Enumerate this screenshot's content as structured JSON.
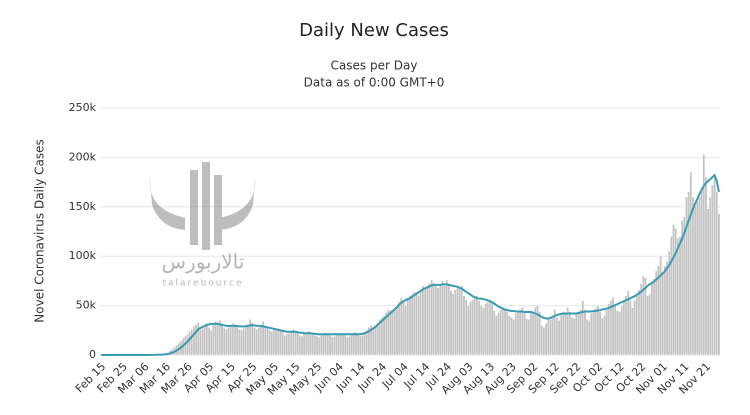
{
  "chart_data": {
    "type": "bar",
    "title": "Daily New Cases",
    "subtitle": [
      "Cases per Day",
      "Data as of 0:00 GMT+0"
    ],
    "y_label": "Novel Coronavirus Daily Cases",
    "ylim": [
      0,
      250000
    ],
    "yticks": [
      0,
      {
        "value": 50000,
        "label": "50k"
      },
      {
        "value": 100000,
        "label": "100k"
      },
      {
        "value": 150000,
        "label": "150k"
      },
      {
        "value": 200000,
        "label": "200k"
      },
      {
        "value": 250000,
        "label": "250k"
      }
    ],
    "grid": true,
    "categories": [
      "Feb 15",
      null,
      null,
      null,
      null,
      null,
      null,
      null,
      null,
      null,
      "Feb 25",
      null,
      null,
      null,
      null,
      null,
      null,
      null,
      null,
      null,
      "Mar 06",
      null,
      null,
      null,
      null,
      null,
      null,
      null,
      null,
      null,
      "Mar 16",
      null,
      null,
      null,
      null,
      null,
      null,
      null,
      null,
      null,
      "Mar 26",
      null,
      null,
      null,
      null,
      null,
      null,
      null,
      null,
      null,
      "Apr 05",
      null,
      null,
      null,
      null,
      null,
      null,
      null,
      null,
      null,
      "Apr 15",
      null,
      null,
      null,
      null,
      null,
      null,
      null,
      null,
      null,
      "Apr 25",
      null,
      null,
      null,
      null,
      null,
      null,
      null,
      null,
      null,
      "May 05",
      null,
      null,
      null,
      null,
      null,
      null,
      null,
      null,
      null,
      "May 15",
      null,
      null,
      null,
      null,
      null,
      null,
      null,
      null,
      null,
      "May 25",
      null,
      null,
      null,
      null,
      null,
      null,
      null,
      null,
      null,
      "Jun 04",
      null,
      null,
      null,
      null,
      null,
      null,
      null,
      null,
      null,
      "Jun 14",
      null,
      null,
      null,
      null,
      null,
      null,
      null,
      null,
      null,
      "Jun 24",
      null,
      null,
      null,
      null,
      null,
      null,
      null,
      null,
      null,
      "Jul 04",
      null,
      null,
      null,
      null,
      null,
      null,
      null,
      null,
      null,
      "Jul 14",
      null,
      null,
      null,
      null,
      null,
      null,
      null,
      null,
      null,
      "Jul 24",
      null,
      null,
      null,
      null,
      null,
      null,
      null,
      null,
      null,
      "Aug 03",
      null,
      null,
      null,
      null,
      null,
      null,
      null,
      null,
      null,
      "Aug 13",
      null,
      null,
      null,
      null,
      null,
      null,
      null,
      null,
      null,
      "Aug 23",
      null,
      null,
      null,
      null,
      null,
      null,
      null,
      null,
      null,
      "Sep 02",
      null,
      null,
      null,
      null,
      null,
      null,
      null,
      null,
      null,
      "Sep 12",
      null,
      null,
      null,
      null,
      null,
      null,
      null,
      null,
      null,
      "Sep 22",
      null,
      null,
      null,
      null,
      null,
      null,
      null,
      null,
      null,
      "Oct 02",
      null,
      null,
      null,
      null,
      null,
      null,
      null,
      null,
      null,
      "Oct 12",
      null,
      null,
      null,
      null,
      null,
      null,
      null,
      null,
      null,
      "Oct 22",
      null,
      null,
      null,
      null,
      null,
      null,
      null,
      null,
      null,
      "Nov 01",
      null,
      null,
      null,
      null,
      null,
      null,
      null,
      null,
      null,
      "Nov 11",
      null,
      null,
      null,
      null,
      null,
      null,
      null,
      null,
      null,
      "Nov 21",
      null,
      null,
      null,
      null,
      null,
      null
    ],
    "series": [
      {
        "type": "bar",
        "color": "#c4c4c4",
        "values": [
          0,
          0,
          0,
          0,
          0,
          0,
          0,
          0,
          0,
          0,
          0,
          0,
          0,
          0,
          0,
          2,
          5,
          8,
          15,
          20,
          50,
          80,
          100,
          150,
          250,
          400,
          450,
          550,
          700,
          900,
          1500,
          2500,
          4500,
          6000,
          8000,
          10000,
          12000,
          14000,
          17000,
          19000,
          21000,
          24000,
          26000,
          29000,
          31000,
          33000,
          26000,
          27000,
          30000,
          32000,
          28000,
          25000,
          30000,
          34000,
          33000,
          35000,
          31000,
          27000,
          26000,
          28000,
          30000,
          32000,
          31000,
          29000,
          26000,
          25000,
          27000,
          28000,
          31000,
          36000,
          33000,
          28000,
          26000,
          28000,
          30000,
          34000,
          29000,
          27000,
          25000,
          24000,
          26000,
          25000,
          27000,
          26000,
          24000,
          20000,
          21000,
          22000,
          23000,
          26000,
          25000,
          24000,
          20000,
          19000,
          21000,
          22000,
          24000,
          23000,
          21000,
          20000,
          19000,
          18000,
          20000,
          21000,
          23000,
          22000,
          20000,
          18000,
          19000,
          21000,
          21000,
          22000,
          22000,
          20000,
          18000,
          19000,
          21000,
          23000,
          23000,
          21000,
          19000,
          20000,
          23000,
          25000,
          28000,
          30000,
          28000,
          30000,
          33000,
          36000,
          38000,
          40000,
          43000,
          46000,
          45000,
          44000,
          48000,
          50000,
          54000,
          58000,
          55000,
          50000,
          58000,
          60000,
          62000,
          64000,
          62000,
          60000,
          65000,
          70000,
          68000,
          70000,
          72000,
          76000,
          73000,
          70000,
          68000,
          72000,
          75000,
          70000,
          76000,
          72000,
          65000,
          62000,
          66000,
          68000,
          67000,
          70000,
          60000,
          56000,
          50000,
          54000,
          56000,
          58000,
          60000,
          55000,
          50000,
          48000,
          52000,
          54000,
          55000,
          54000,
          45000,
          40000,
          43000,
          46000,
          48000,
          47000,
          44000,
          40000,
          38000,
          36000,
          42000,
          45000,
          46000,
          48000,
          43000,
          37000,
          36000,
          44000,
          42000,
          48000,
          50000,
          44000,
          30000,
          28000,
          32000,
          38000,
          36000,
          40000,
          46000,
          38000,
          35000,
          40000,
          44000,
          42000,
          48000,
          44000,
          38000,
          37000,
          42000,
          44000,
          46000,
          55000,
          46000,
          36000,
          35000,
          42000,
          44000,
          48000,
          50000,
          44000,
          37000,
          40000,
          47000,
          52000,
          55000,
          58000,
          50000,
          45000,
          44000,
          50000,
          55000,
          60000,
          65000,
          56000,
          48000,
          55000,
          61000,
          66000,
          72000,
          80000,
          78000,
          60000,
          62000,
          73000,
          77000,
          85000,
          90000,
          100000,
          84000,
          90000,
          95000,
          105000,
          120000,
          132000,
          128000,
          118000,
          120000,
          136000,
          140000,
          160000,
          165000,
          185000,
          160000,
          150000,
          155000,
          160000,
          170000,
          203000,
          180000,
          148000,
          160000,
          172000,
          180000,
          165000,
          143000
        ]
      },
      {
        "type": "line",
        "color": "#3a9bb2",
        "values": [
          0,
          0,
          0,
          0,
          0,
          0,
          0,
          0,
          0,
          0,
          0,
          0,
          0,
          0,
          0,
          1,
          2,
          4,
          7,
          10,
          20,
          40,
          60,
          90,
          130,
          200,
          270,
          350,
          440,
          560,
          800,
          1100,
          1700,
          2400,
          3300,
          4500,
          6000,
          7500,
          9500,
          11500,
          13500,
          16000,
          18500,
          21000,
          23500,
          26000,
          27500,
          28500,
          29500,
          30500,
          31000,
          31500,
          31500,
          31500,
          31500,
          31000,
          30500,
          30000,
          29500,
          29500,
          29500,
          29500,
          29500,
          29500,
          29000,
          29000,
          29000,
          29000,
          29500,
          30000,
          30000,
          30000,
          29500,
          29500,
          29500,
          29000,
          28500,
          28000,
          27500,
          27000,
          26500,
          26000,
          25500,
          25000,
          24500,
          24000,
          23500,
          23500,
          23500,
          23500,
          23500,
          23000,
          22500,
          22500,
          22000,
          22000,
          22000,
          22000,
          21500,
          21500,
          21000,
          21000,
          21000,
          21000,
          21000,
          21000,
          21000,
          21000,
          21000,
          21000,
          21000,
          21000,
          21000,
          21000,
          21000,
          21000,
          21000,
          21000,
          21000,
          21000,
          21000,
          21500,
          22000,
          23000,
          24000,
          25500,
          27000,
          28500,
          30500,
          32500,
          34500,
          36500,
          38500,
          40500,
          42500,
          44500,
          46500,
          48500,
          51000,
          53000,
          54500,
          55500,
          56500,
          57500,
          59000,
          60500,
          62000,
          63500,
          65000,
          66500,
          67500,
          68500,
          69500,
          70500,
          71000,
          71000,
          71000,
          71000,
          71500,
          71500,
          71500,
          71000,
          70500,
          70000,
          69500,
          69000,
          68000,
          67000,
          65500,
          64000,
          62500,
          61000,
          59500,
          58500,
          57500,
          57000,
          57000,
          56500,
          56000,
          55500,
          54500,
          53500,
          52000,
          50500,
          49000,
          48000,
          47000,
          46000,
          45500,
          45000,
          44500,
          44500,
          44000,
          44000,
          44000,
          44000,
          43500,
          43500,
          43500,
          43500,
          43000,
          42000,
          41000,
          40000,
          38500,
          37500,
          37000,
          37000,
          37500,
          38500,
          39500,
          40500,
          41000,
          41500,
          42000,
          42000,
          42000,
          42000,
          42000,
          42000,
          42000,
          42500,
          43000,
          43500,
          44000,
          44000,
          44000,
          44000,
          44500,
          44500,
          45000,
          45500,
          46000,
          46500,
          47000,
          47500,
          48500,
          49500,
          50500,
          51500,
          52500,
          53500,
          54500,
          55500,
          56500,
          57500,
          58500,
          59500,
          61000,
          62500,
          64000,
          66000,
          68000,
          70000,
          71500,
          73000,
          74500,
          76500,
          78500,
          80500,
          82500,
          85000,
          88000,
          91000,
          95000,
          99000,
          103000,
          108000,
          113000,
          118000,
          124000,
          130000,
          136000,
          142000,
          148000,
          153000,
          158000,
          163000,
          167000,
          171000,
          174000,
          176000,
          178000,
          180000,
          182000,
          176000,
          165000
        ]
      }
    ]
  },
  "watermark": {
    "text": "تالاربورس",
    "subtext": "talarebource"
  }
}
